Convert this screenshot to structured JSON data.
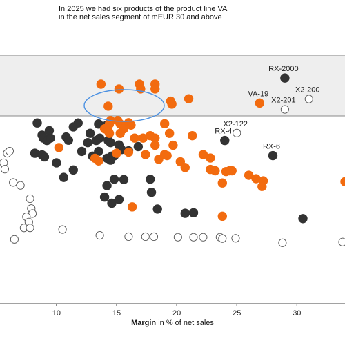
{
  "chart_data": {
    "type": "scatter",
    "title_lines": [
      "In 2025 we had six products of the product line VA",
      "in the net sales segment of mEUR 30 and above"
    ],
    "xlabel_bold": "Margin",
    "xlabel_rest": " in % of net sales",
    "xlim": [
      5.3,
      34
    ],
    "xticks": [
      10,
      15,
      20,
      25,
      30
    ],
    "y_values_shown": false,
    "highlight_band": true,
    "colors": {
      "va": "#f26b0f",
      "dark": "#333333",
      "open": "#ffffff",
      "band": "#eeeeee",
      "ellipse": "#4a90e2"
    },
    "series": [
      {
        "style": "orange",
        "points": [
          [
            13.7,
            0.826
          ],
          [
            15.2,
            0.808
          ],
          [
            16.9,
            0.826
          ],
          [
            17.0,
            0.808
          ],
          [
            18.2,
            0.826
          ],
          [
            18.2,
            0.808
          ],
          [
            14.3,
            0.743
          ],
          [
            14.5,
            0.689
          ],
          [
            14.4,
            0.676
          ],
          [
            14.0,
            0.658
          ],
          [
            14.3,
            0.65
          ],
          [
            14.4,
            0.641
          ],
          [
            15.1,
            0.689
          ],
          [
            15.3,
            0.676
          ],
          [
            16.0,
            0.681
          ],
          [
            16.2,
            0.672
          ],
          [
            15.6,
            0.658
          ],
          [
            15.3,
            0.641
          ],
          [
            16.5,
            0.623
          ],
          [
            17.2,
            0.623
          ],
          [
            17.8,
            0.632
          ],
          [
            18.2,
            0.623
          ],
          [
            19.0,
            0.677
          ],
          [
            19.4,
            0.641
          ],
          [
            18.2,
            0.596
          ],
          [
            17.4,
            0.561
          ],
          [
            16.0,
            0.57
          ],
          [
            15.0,
            0.566
          ],
          [
            13.2,
            0.547
          ],
          [
            13.5,
            0.537
          ],
          [
            10.2,
            0.587
          ],
          [
            18.5,
            0.543
          ],
          [
            19.2,
            0.557
          ],
          [
            19.7,
            0.596
          ],
          [
            19.0,
            0.561
          ],
          [
            20.3,
            0.534
          ],
          [
            19.5,
            0.762
          ],
          [
            19.6,
            0.751
          ],
          [
            21.0,
            0.771
          ],
          [
            21.3,
            0.632
          ],
          [
            22.2,
            0.561
          ],
          [
            22.8,
            0.548
          ],
          [
            22.8,
            0.505
          ],
          [
            23.2,
            0.5
          ],
          [
            23.8,
            0.454
          ],
          [
            24.1,
            0.497
          ],
          [
            24.6,
            0.5
          ],
          [
            24.4,
            0.5
          ],
          [
            26.0,
            0.483
          ],
          [
            26.6,
            0.47
          ],
          [
            27.2,
            0.462
          ],
          [
            27.1,
            0.441
          ],
          [
            26.9,
            0.755
          ],
          [
            20.7,
            0.512
          ],
          [
            16.3,
            0.364
          ],
          [
            23.8,
            0.329
          ],
          [
            34.0,
            0.459
          ]
        ]
      },
      {
        "style": "dark",
        "points": [
          [
            8.4,
            0.68
          ],
          [
            9.4,
            0.651
          ],
          [
            11.8,
            0.68
          ],
          [
            11.4,
            0.665
          ],
          [
            13.5,
            0.676
          ],
          [
            14.2,
            0.672
          ],
          [
            8.8,
            0.634
          ],
          [
            8.9,
            0.623
          ],
          [
            9.2,
            0.614
          ],
          [
            9.5,
            0.623
          ],
          [
            10.8,
            0.627
          ],
          [
            11.0,
            0.615
          ],
          [
            12.6,
            0.606
          ],
          [
            13.3,
            0.614
          ],
          [
            13.6,
            0.623
          ],
          [
            12.8,
            0.641
          ],
          [
            14.3,
            0.614
          ],
          [
            14.5,
            0.606
          ],
          [
            15.2,
            0.597
          ],
          [
            15.4,
            0.58
          ],
          [
            16.8,
            0.591
          ],
          [
            16.0,
            0.575
          ],
          [
            14.8,
            0.556
          ],
          [
            14.6,
            0.555
          ],
          [
            14.2,
            0.547
          ],
          [
            14.5,
            0.54
          ],
          [
            13.5,
            0.573
          ],
          [
            12.1,
            0.573
          ],
          [
            13.0,
            0.555
          ],
          [
            8.2,
            0.566
          ],
          [
            8.8,
            0.56
          ],
          [
            9.0,
            0.552
          ],
          [
            10.0,
            0.53
          ],
          [
            11.4,
            0.503
          ],
          [
            10.6,
            0.475
          ],
          [
            14.8,
            0.468
          ],
          [
            14.2,
            0.444
          ],
          [
            14.0,
            0.401
          ],
          [
            15.6,
            0.467
          ],
          [
            14.6,
            0.378
          ],
          [
            15.2,
            0.392
          ],
          [
            17.8,
            0.468
          ],
          [
            17.9,
            0.419
          ],
          [
            18.4,
            0.356
          ],
          [
            20.7,
            0.34
          ],
          [
            21.4,
            0.342
          ],
          [
            24.0,
            0.614
          ],
          [
            29.0,
            0.849
          ],
          [
            28.0,
            0.557
          ],
          [
            30.5,
            0.32
          ]
        ]
      },
      {
        "style": "open",
        "points": [
          [
            5.9,
            0.566
          ],
          [
            6.1,
            0.574
          ],
          [
            5.6,
            0.53
          ],
          [
            5.7,
            0.506
          ],
          [
            6.4,
            0.456
          ],
          [
            7.0,
            0.445
          ],
          [
            7.8,
            0.395
          ],
          [
            7.9,
            0.358
          ],
          [
            8.0,
            0.339
          ],
          [
            7.5,
            0.327
          ],
          [
            7.7,
            0.307
          ],
          [
            7.3,
            0.285
          ],
          [
            7.8,
            0.285
          ],
          [
            6.5,
            0.242
          ],
          [
            10.5,
            0.279
          ],
          [
            13.6,
            0.257
          ],
          [
            16.0,
            0.252
          ],
          [
            17.4,
            0.252
          ],
          [
            18.1,
            0.252
          ],
          [
            20.1,
            0.25
          ],
          [
            21.4,
            0.25
          ],
          [
            22.2,
            0.25
          ],
          [
            23.6,
            0.25
          ],
          [
            23.8,
            0.245
          ],
          [
            24.9,
            0.246
          ],
          [
            28.8,
            0.229
          ],
          [
            33.8,
            0.232
          ],
          [
            29.0,
            0.731
          ],
          [
            31.0,
            0.77
          ],
          [
            25.0,
            0.642
          ]
        ]
      }
    ],
    "point_labels": [
      {
        "text": "RX-2000",
        "x": 29.0,
        "y": 0.849
      },
      {
        "text": "VA-19",
        "x": 26.9,
        "y": 0.755
      },
      {
        "text": "X2-200",
        "x": 31.0,
        "y": 0.77
      },
      {
        "text": "X2-201",
        "x": 29.0,
        "y": 0.731
      },
      {
        "text": "X2-122",
        "x": 25.0,
        "y": 0.642
      },
      {
        "text": "RX-4",
        "x": 24.0,
        "y": 0.614
      },
      {
        "text": "RX-6",
        "x": 28.0,
        "y": 0.557
      }
    ],
    "annotation": "ellipse around six top VA products"
  }
}
